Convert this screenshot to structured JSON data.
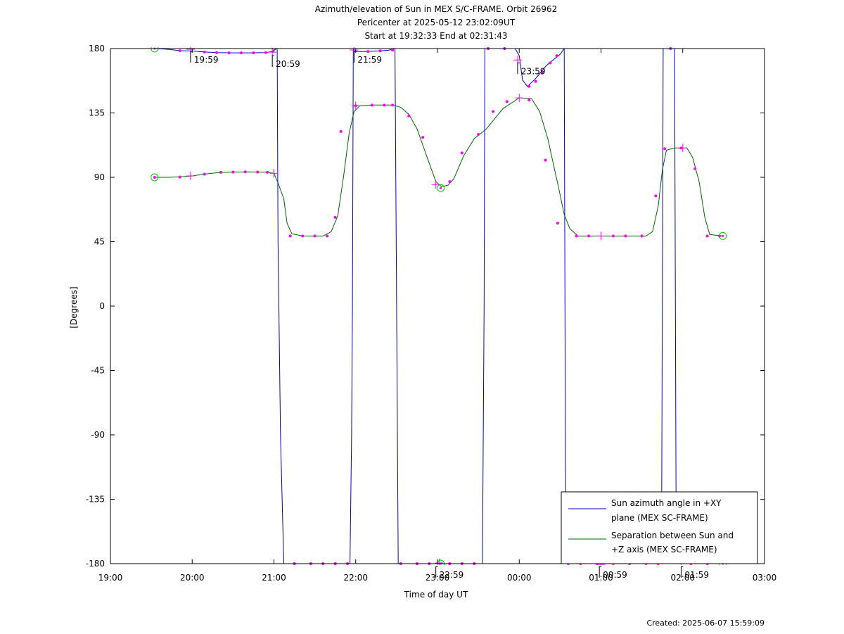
{
  "chart_data": {
    "type": "line",
    "title_lines": [
      "Azimuth/elevation of Sun in MEX S/C-FRAME.  Orbit 26962",
      "Pericenter at 2025-05-12 23:02:09UT",
      "Start at 19:32:33 End at 02:31:43"
    ],
    "xlabel": "Time of day UT",
    "ylabel": "[Degrees]",
    "xlim_hours": [
      19,
      27
    ],
    "ylim": [
      -180,
      180
    ],
    "x_ticks": [
      {
        "h": 19,
        "label": "19:00"
      },
      {
        "h": 20,
        "label": "20:00"
      },
      {
        "h": 21,
        "label": "21:00"
      },
      {
        "h": 22,
        "label": "22:00"
      },
      {
        "h": 23,
        "label": "23:00"
      },
      {
        "h": 24,
        "label": "00:00"
      },
      {
        "h": 25,
        "label": "01:00"
      },
      {
        "h": 26,
        "label": "02:00"
      },
      {
        "h": 27,
        "label": "03:00"
      }
    ],
    "y_ticks": [
      180,
      135,
      90,
      45,
      0,
      -45,
      -90,
      -135,
      -180
    ],
    "grid": false,
    "legend_position": "bottom-right",
    "colors": {
      "azimuth": "#0000cc",
      "separation": "#006600",
      "markers": "#ff00ff",
      "endpoints": "#00cc00"
    },
    "series": [
      {
        "name_lines": [
          "Sun azimuth angle in +XY",
          "plane (MEX SC-FRAME)"
        ],
        "key": "azimuth",
        "segments": [
          [
            [
              19.54,
              180
            ],
            [
              19.7,
              179.5
            ],
            [
              19.85,
              178.5
            ],
            [
              20.0,
              178.3
            ],
            [
              20.15,
              177.6
            ],
            [
              20.3,
              177.2
            ],
            [
              20.5,
              177
            ],
            [
              20.7,
              177
            ],
            [
              20.9,
              177.2
            ],
            [
              20.98,
              178
            ],
            [
              21.02,
              179.5
            ],
            [
              21.04,
              180
            ]
          ],
          [
            [
              21.04,
              180
            ],
            [
              21.05,
              45
            ],
            [
              21.08,
              -90
            ],
            [
              21.12,
              -180
            ]
          ],
          [
            [
              21.12,
              -180
            ],
            [
              21.93,
              -180
            ]
          ],
          [
            [
              21.93,
              -180
            ],
            [
              21.95,
              -90
            ],
            [
              21.96,
              0
            ],
            [
              21.97,
              180
            ]
          ],
          [
            [
              21.97,
              180
            ],
            [
              21.98,
              178.5
            ],
            [
              22.0,
              178
            ],
            [
              22.1,
              177.9
            ],
            [
              22.2,
              178.1
            ],
            [
              22.3,
              178.4
            ],
            [
              22.4,
              178.8
            ],
            [
              22.48,
              180
            ]
          ],
          [
            [
              22.48,
              180
            ],
            [
              22.5,
              0
            ],
            [
              22.52,
              -180
            ]
          ],
          [
            [
              22.52,
              -180
            ],
            [
              23.55,
              -180
            ]
          ],
          [
            [
              23.55,
              -180
            ],
            [
              23.57,
              0
            ],
            [
              23.58,
              180
            ]
          ],
          [
            [
              23.58,
              180
            ],
            [
              23.95,
              180
            ],
            [
              24.0,
              175
            ],
            [
              24.04,
              158
            ],
            [
              24.1,
              153.5
            ],
            [
              24.2,
              159
            ],
            [
              24.33,
              168
            ],
            [
              24.5,
              176
            ],
            [
              24.55,
              180
            ]
          ],
          [
            [
              24.55,
              180
            ],
            [
              24.56,
              0
            ],
            [
              24.57,
              -180
            ]
          ],
          [
            [
              24.57,
              -180
            ],
            [
              25.74,
              -180
            ]
          ],
          [
            [
              25.74,
              -180
            ],
            [
              25.75,
              0
            ],
            [
              25.76,
              180
            ]
          ],
          [
            [
              25.76,
              180
            ],
            [
              25.9,
              180
            ]
          ],
          [
            [
              25.9,
              180
            ],
            [
              25.91,
              0
            ],
            [
              25.92,
              -180
            ]
          ],
          [
            [
              25.92,
              -180
            ],
            [
              26.49,
              -180
            ]
          ]
        ],
        "dots": [
          [
            19.85,
            178.5
          ],
          [
            20.15,
            177.6
          ],
          [
            20.3,
            177.2
          ],
          [
            20.45,
            177
          ],
          [
            20.6,
            177
          ],
          [
            20.75,
            177
          ],
          [
            20.9,
            177.2
          ],
          [
            22.15,
            178
          ],
          [
            22.3,
            178.4
          ],
          [
            22.45,
            178.9
          ],
          [
            23.62,
            180
          ],
          [
            23.82,
            180
          ],
          [
            24.12,
            153.5
          ],
          [
            24.2,
            157
          ],
          [
            24.28,
            163
          ],
          [
            24.38,
            170
          ],
          [
            24.46,
            175
          ],
          [
            21.25,
            -180
          ],
          [
            21.45,
            -180
          ],
          [
            21.6,
            -180
          ],
          [
            21.75,
            -180
          ],
          [
            21.9,
            -180
          ],
          [
            22.55,
            -180
          ],
          [
            22.75,
            -180
          ],
          [
            22.9,
            -180
          ],
          [
            23.15,
            -180
          ],
          [
            23.3,
            -180
          ],
          [
            23.45,
            -180
          ],
          [
            24.6,
            -180
          ],
          [
            24.75,
            -180
          ],
          [
            24.95,
            -180
          ],
          [
            25.15,
            -180
          ],
          [
            25.35,
            -180
          ],
          [
            25.55,
            -180
          ],
          [
            25.7,
            -180
          ],
          [
            26.1,
            -180
          ],
          [
            26.3,
            -180
          ],
          [
            25.85,
            180
          ]
        ],
        "plus": [
          [
            19.98,
            179.5
          ],
          [
            20.98,
            177.5
          ],
          [
            21.98,
            179
          ],
          [
            23.02,
            -179.5
          ],
          [
            23.98,
            172
          ],
          [
            25.0,
            -180.5
          ],
          [
            25.98,
            -180
          ]
        ]
      },
      {
        "name_lines": [
          "Separation between Sun and",
          "+Z axis (MEX SC-FRAME)"
        ],
        "key": "separation",
        "segments": [
          [
            [
              19.54,
              90
            ],
            [
              19.7,
              90
            ],
            [
              19.85,
              90.3
            ],
            [
              20.0,
              91
            ],
            [
              20.15,
              92.2
            ],
            [
              20.3,
              93.2
            ],
            [
              20.5,
              93.7
            ],
            [
              20.7,
              93.8
            ],
            [
              20.9,
              93.6
            ],
            [
              21.0,
              92.8
            ],
            [
              21.05,
              86
            ],
            [
              21.12,
              75
            ],
            [
              21.16,
              58
            ],
            [
              21.22,
              50.5
            ],
            [
              21.35,
              49
            ],
            [
              21.6,
              49
            ],
            [
              21.7,
              52
            ],
            [
              21.78,
              63
            ],
            [
              21.85,
              90
            ],
            [
              21.92,
              121
            ],
            [
              21.98,
              136
            ],
            [
              22.05,
              140
            ],
            [
              22.2,
              140.5
            ],
            [
              22.45,
              140.5
            ],
            [
              22.55,
              139
            ],
            [
              22.65,
              134
            ],
            [
              22.75,
              124
            ],
            [
              22.88,
              103
            ],
            [
              22.98,
              87
            ],
            [
              23.05,
              83.5
            ],
            [
              23.13,
              84.5
            ],
            [
              23.2,
              89
            ],
            [
              23.32,
              105
            ],
            [
              23.45,
              117
            ],
            [
              23.6,
              124
            ],
            [
              23.8,
              138
            ],
            [
              24.0,
              145.5
            ],
            [
              24.15,
              145
            ],
            [
              24.25,
              136
            ],
            [
              24.35,
              117
            ],
            [
              24.48,
              83
            ],
            [
              24.55,
              64
            ],
            [
              24.62,
              54
            ],
            [
              24.72,
              49
            ],
            [
              25.0,
              49
            ],
            [
              25.55,
              49
            ],
            [
              25.63,
              52
            ],
            [
              25.7,
              70
            ],
            [
              25.75,
              95
            ],
            [
              25.8,
              109
            ],
            [
              25.9,
              110.5
            ],
            [
              26.05,
              110.5
            ],
            [
              26.12,
              104
            ],
            [
              26.2,
              87
            ],
            [
              26.27,
              62
            ],
            [
              26.33,
              50
            ],
            [
              26.49,
              49
            ]
          ]
        ],
        "dots": [
          [
            19.54,
            90
          ],
          [
            19.85,
            90.2
          ],
          [
            20.15,
            92.2
          ],
          [
            20.35,
            93.5
          ],
          [
            20.5,
            93.7
          ],
          [
            20.65,
            93.8
          ],
          [
            20.8,
            93.7
          ],
          [
            20.92,
            93.5
          ],
          [
            21.2,
            49
          ],
          [
            21.35,
            49
          ],
          [
            21.5,
            49
          ],
          [
            21.65,
            49
          ],
          [
            21.75,
            62
          ],
          [
            21.82,
            122
          ],
          [
            22.0,
            140
          ],
          [
            22.2,
            140.5
          ],
          [
            22.35,
            140.5
          ],
          [
            22.45,
            140.5
          ],
          [
            22.65,
            133
          ],
          [
            22.82,
            118
          ],
          [
            23.15,
            87
          ],
          [
            23.3,
            107
          ],
          [
            23.5,
            120
          ],
          [
            23.68,
            136
          ],
          [
            23.85,
            143
          ],
          [
            24.12,
            144
          ],
          [
            24.32,
            102
          ],
          [
            24.47,
            58
          ],
          [
            24.7,
            49
          ],
          [
            24.85,
            49
          ],
          [
            25.15,
            49
          ],
          [
            25.3,
            49
          ],
          [
            25.5,
            49
          ],
          [
            25.67,
            77
          ],
          [
            25.78,
            110
          ],
          [
            25.98,
            110.5
          ],
          [
            26.15,
            96
          ],
          [
            26.3,
            49
          ],
          [
            26.45,
            49
          ]
        ],
        "plus": [
          [
            19.98,
            91
          ],
          [
            21.0,
            92.8
          ],
          [
            22.0,
            140
          ],
          [
            22.98,
            85
          ],
          [
            24.0,
            145.5
          ],
          [
            25.0,
            49
          ],
          [
            26.0,
            110.5
          ]
        ]
      }
    ],
    "endpoints": [
      [
        19.54,
        180
      ],
      [
        19.54,
        90
      ],
      [
        23.04,
        82.5
      ],
      [
        23.04,
        -180
      ],
      [
        26.49,
        49
      ],
      [
        26.49,
        -180
      ]
    ],
    "annotations": [
      {
        "h": 19.98,
        "y": 180,
        "label": "19:59"
      },
      {
        "h": 20.98,
        "y": 177,
        "label": "20:59"
      },
      {
        "h": 21.98,
        "y": 180,
        "label": "21:59"
      },
      {
        "h": 22.98,
        "y": -180,
        "label": "22:59"
      },
      {
        "h": 23.98,
        "y": 172,
        "label": "23:59"
      },
      {
        "h": 24.98,
        "y": -180,
        "label": "00:59"
      },
      {
        "h": 25.98,
        "y": -180,
        "label": "01:59"
      }
    ]
  },
  "footer": {
    "created": "Created: 2025-06-07 15:59:09"
  }
}
